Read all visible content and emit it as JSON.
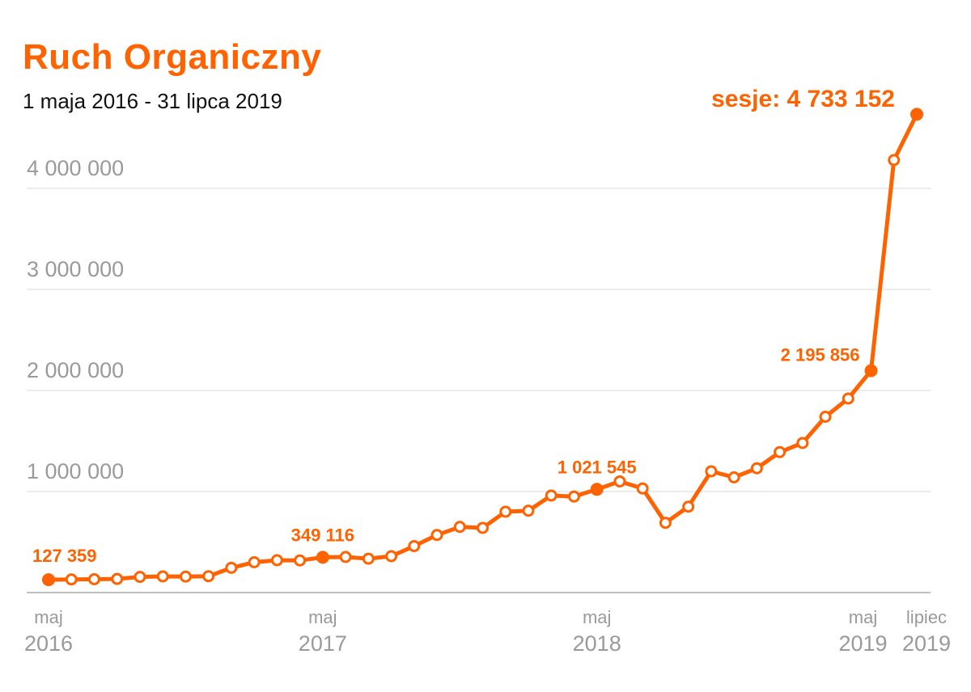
{
  "chart_data": {
    "type": "line",
    "title": "Ruch Organiczny",
    "subtitle": "1 maja 2016 - 31 lipca 2019",
    "ylim": [
      0,
      5000000
    ],
    "y_ticks": [
      {
        "value": 1000000,
        "label": "1 000 000"
      },
      {
        "value": 2000000,
        "label": "2 000 000"
      },
      {
        "value": 3000000,
        "label": "3 000 000"
      },
      {
        "value": 4000000,
        "label": "4 000 000"
      }
    ],
    "grid": true,
    "x": [
      "2016-05",
      "2016-06",
      "2016-07",
      "2016-08",
      "2016-09",
      "2016-10",
      "2016-11",
      "2016-12",
      "2017-01",
      "2017-02",
      "2017-03",
      "2017-04",
      "2017-05",
      "2017-06",
      "2017-07",
      "2017-08",
      "2017-09",
      "2017-10",
      "2017-11",
      "2017-12",
      "2018-01",
      "2018-02",
      "2018-03",
      "2018-04",
      "2018-05",
      "2018-06",
      "2018-07",
      "2018-08",
      "2018-09",
      "2018-10",
      "2018-11",
      "2018-12",
      "2019-01",
      "2019-02",
      "2019-03",
      "2019-04",
      "2019-05",
      "2019-06",
      "2019-07"
    ],
    "series": [
      {
        "color": "#ff6200",
        "values": [
          127359,
          130000,
          132000,
          135000,
          155000,
          160000,
          158000,
          162000,
          245000,
          300000,
          320000,
          318000,
          349116,
          352000,
          335000,
          360000,
          460000,
          570000,
          650000,
          640000,
          800000,
          810000,
          960000,
          950000,
          1021545,
          1100000,
          1030000,
          690000,
          850000,
          1200000,
          1140000,
          1230000,
          1390000,
          1480000,
          1740000,
          1920000,
          2195856,
          4280000,
          4733152
        ],
        "highlighted_indices": [
          0,
          12,
          24,
          36,
          38
        ]
      }
    ],
    "annotations": [
      {
        "index": 0,
        "text": "127 359"
      },
      {
        "index": 12,
        "text": "349 116"
      },
      {
        "index": 24,
        "text": "1 021 545"
      },
      {
        "index": 36,
        "text": "2 195 856"
      },
      {
        "index": 38,
        "text": "sesje: 4 733 152"
      }
    ],
    "x_tick_labels": [
      {
        "index": 0,
        "month": "maj",
        "year": "2016"
      },
      {
        "index": 12,
        "month": "maj",
        "year": "2017"
      },
      {
        "index": 24,
        "month": "maj",
        "year": "2018"
      },
      {
        "index": 36,
        "month": "maj",
        "year": "2019"
      },
      {
        "index": 38,
        "month": "lipiec",
        "year": "2019"
      }
    ],
    "colors": {
      "accent": "#ff6200",
      "grid": "#e6e6e6",
      "axis": "#bfbfbf",
      "tick_text": "#9a9a9a"
    }
  }
}
